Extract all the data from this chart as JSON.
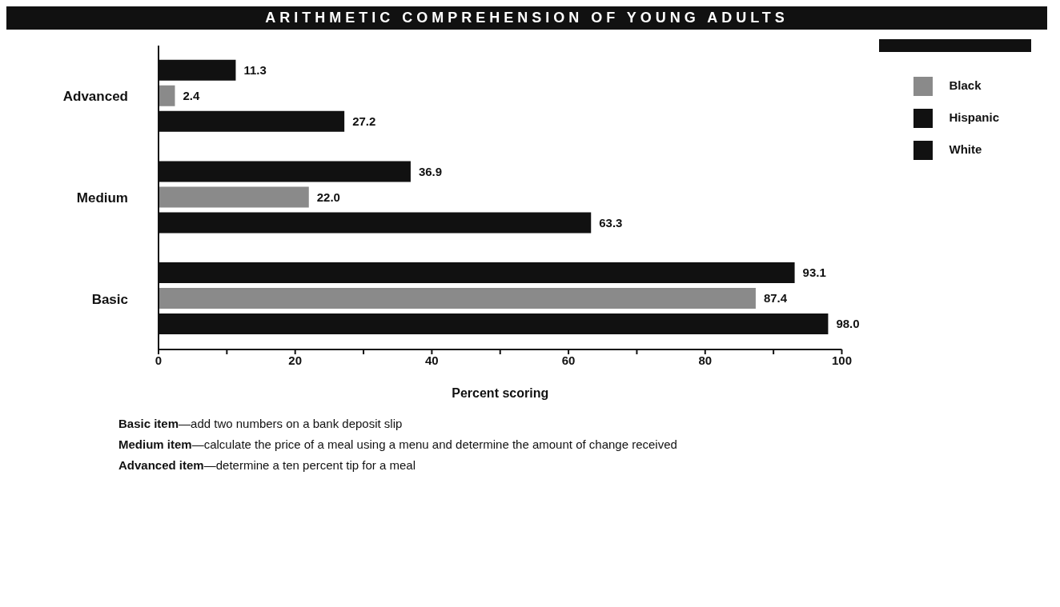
{
  "chart_data": {
    "type": "bar",
    "orientation": "horizontal",
    "title": "ARITHMETIC COMPREHENSION OF YOUNG ADULTS",
    "xlabel": "Percent scoring",
    "categories": [
      "Advanced",
      "Medium",
      "Basic"
    ],
    "series": [
      {
        "name": "Hispanic",
        "color": "#111111",
        "values": [
          11.3,
          36.9,
          93.1
        ],
        "value_labels": [
          "11.3",
          "36.9",
          "93.1"
        ]
      },
      {
        "name": "Black",
        "color": "#8a8a8a",
        "values": [
          2.4,
          22.0,
          87.4
        ],
        "value_labels": [
          "2.4",
          "22.0",
          "87.4"
        ]
      },
      {
        "name": "White",
        "color": "#111111",
        "values": [
          27.2,
          63.3,
          98.0
        ],
        "value_labels": [
          "27.2",
          "63.3",
          "98.0"
        ]
      }
    ],
    "xlim": [
      0,
      100
    ],
    "xticks": [
      0,
      {
        "value": 10,
        "label": null
      },
      20,
      {
        "value": 30,
        "label": null
      },
      40,
      {
        "value": 50,
        "label": null
      },
      60,
      {
        "value": 70,
        "label": null
      },
      80,
      {
        "value": 90,
        "label": null
      },
      100
    ],
    "grid": false,
    "legend": "top right",
    "annotations": [
      "Basic item—add two numbers on a bank deposit slip",
      "Medium item—calculate the price of a meal using a menu and determine the amount of change received",
      "Advanced item—determine a ten percent tip for a meal"
    ]
  }
}
